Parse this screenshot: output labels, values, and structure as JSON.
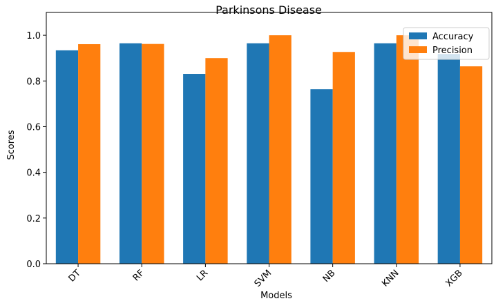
{
  "chart_data": {
    "type": "bar",
    "title": "Parkinsons Disease",
    "x_label": "Models",
    "y_label": "Scores",
    "categories": [
      "DT",
      "RF",
      "LR",
      "SVM",
      "NB",
      "KNN",
      "XGB"
    ],
    "series": [
      {
        "name": "Accuracy",
        "color": "#1f77b4",
        "values": [
          0.934,
          0.965,
          0.831,
          0.965,
          0.764,
          0.965,
          0.918
        ]
      },
      {
        "name": "Precision",
        "color": "#ff7f0e",
        "values": [
          0.961,
          0.962,
          0.9,
          1.0,
          0.927,
          1.0,
          0.864
        ]
      }
    ],
    "ylim": [
      0,
      1.1
    ],
    "yticks": [
      {
        "value": 0,
        "label": "0.0"
      },
      0.2,
      0.4,
      0.6,
      0.8,
      {
        "value": 1,
        "label": "1.0"
      }
    ],
    "legend": "upper right"
  }
}
